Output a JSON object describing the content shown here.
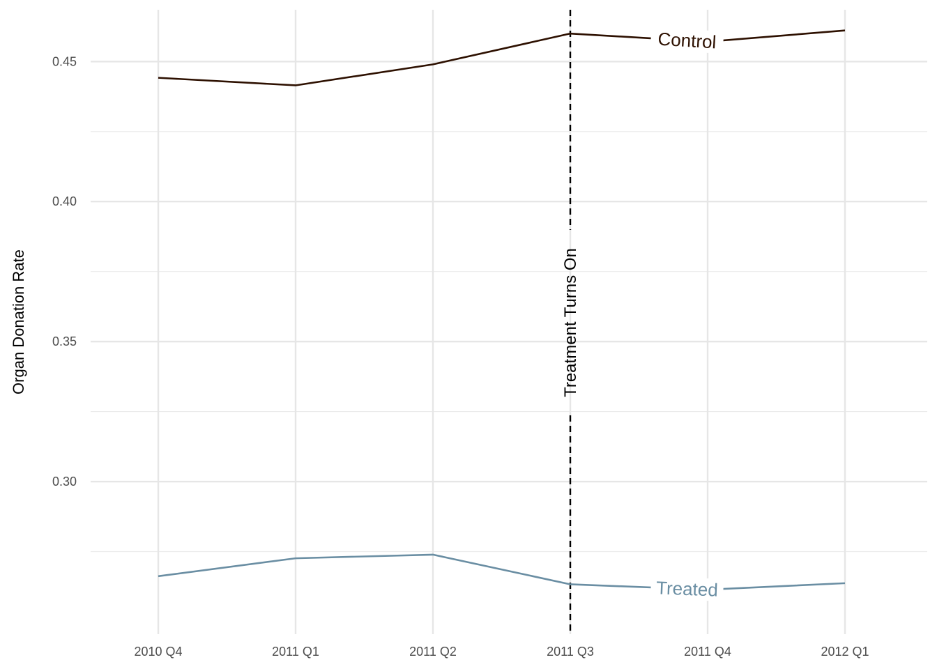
{
  "chart_data": {
    "type": "line",
    "title": "",
    "xlabel": "",
    "ylabel": "Organ Donation Rate",
    "categories": [
      "2010 Q4",
      "2011 Q1",
      "2011 Q2",
      "2011 Q3",
      "2011 Q4",
      "2012 Q1"
    ],
    "ylim": [
      0.2455,
      0.4685
    ],
    "yticks": [
      0.3,
      0.35,
      0.4,
      0.45
    ],
    "ytick_labels": [
      "0.30",
      "0.35",
      "0.40",
      "0.45"
    ],
    "grid": true,
    "legend": "none (direct labels on lines)",
    "series": [
      {
        "name": "Control",
        "color": "#2d1000",
        "values": [
          0.4442,
          0.4415,
          0.449,
          0.46,
          0.4571,
          0.4611
        ]
      },
      {
        "name": "Treated",
        "color": "#6a8ea3",
        "values": [
          0.2662,
          0.2726,
          0.2739,
          0.2633,
          0.2614,
          0.2637
        ]
      }
    ],
    "annotations": [
      {
        "text": "Treatment Turns On",
        "x": "2011 Q3",
        "style": "dashed vertical line"
      }
    ]
  }
}
